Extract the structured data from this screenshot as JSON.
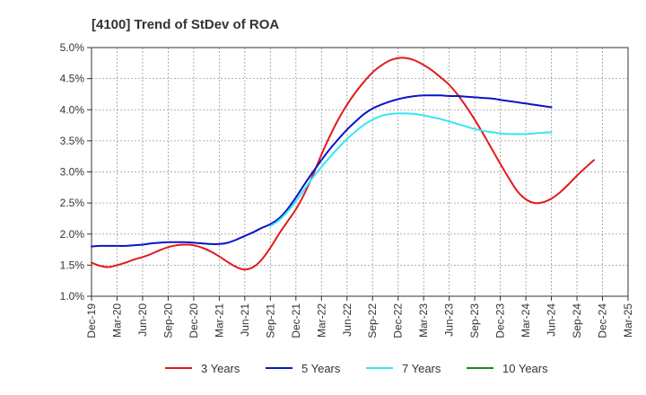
{
  "chart_data": {
    "type": "line",
    "title": "[4100]  Trend of StDev of ROA",
    "xlabel": "",
    "ylabel": "",
    "x_ticks": [
      "Dec-19",
      "Mar-20",
      "Jun-20",
      "Sep-20",
      "Dec-20",
      "Mar-21",
      "Jun-21",
      "Sep-21",
      "Dec-21",
      "Mar-22",
      "Jun-22",
      "Sep-22",
      "Dec-22",
      "Mar-23",
      "Jun-23",
      "Sep-23",
      "Dec-23",
      "Mar-24",
      "Jun-24",
      "Sep-24",
      "Dec-24",
      "Mar-25"
    ],
    "y_ticks": [
      "1.0%",
      "1.5%",
      "2.0%",
      "2.5%",
      "3.0%",
      "3.5%",
      "4.0%",
      "4.5%",
      "5.0%"
    ],
    "ylim": [
      1.0,
      5.0
    ],
    "grid": true,
    "legend_position": "bottom",
    "series": [
      {
        "name": "3 Years",
        "color": "#e31a1c",
        "points": [
          {
            "x": "Dec-19",
            "y": 1.54
          },
          {
            "x": "Jan-20",
            "y": 1.49
          },
          {
            "x": "Feb-20",
            "y": 1.47
          },
          {
            "x": "Mar-20",
            "y": 1.5
          },
          {
            "x": "Apr-20",
            "y": 1.54
          },
          {
            "x": "May-20",
            "y": 1.59
          },
          {
            "x": "Jun-20",
            "y": 1.63
          },
          {
            "x": "Jul-20",
            "y": 1.68
          },
          {
            "x": "Aug-20",
            "y": 1.74
          },
          {
            "x": "Sep-20",
            "y": 1.79
          },
          {
            "x": "Oct-20",
            "y": 1.82
          },
          {
            "x": "Nov-20",
            "y": 1.83
          },
          {
            "x": "Dec-20",
            "y": 1.82
          },
          {
            "x": "Jan-21",
            "y": 1.78
          },
          {
            "x": "Feb-21",
            "y": 1.72
          },
          {
            "x": "Mar-21",
            "y": 1.64
          },
          {
            "x": "Apr-21",
            "y": 1.55
          },
          {
            "x": "May-21",
            "y": 1.47
          },
          {
            "x": "Jun-21",
            "y": 1.43
          },
          {
            "x": "Jul-21",
            "y": 1.47
          },
          {
            "x": "Aug-21",
            "y": 1.59
          },
          {
            "x": "Sep-21",
            "y": 1.78
          },
          {
            "x": "Oct-21",
            "y": 2.0
          },
          {
            "x": "Nov-21",
            "y": 2.2
          },
          {
            "x": "Dec-21",
            "y": 2.4
          },
          {
            "x": "Jan-22",
            "y": 2.65
          },
          {
            "x": "Feb-22",
            "y": 2.95
          },
          {
            "x": "Mar-22",
            "y": 3.28
          },
          {
            "x": "Apr-22",
            "y": 3.58
          },
          {
            "x": "May-22",
            "y": 3.85
          },
          {
            "x": "Jun-22",
            "y": 4.08
          },
          {
            "x": "Jul-22",
            "y": 4.28
          },
          {
            "x": "Aug-22",
            "y": 4.45
          },
          {
            "x": "Sep-22",
            "y": 4.6
          },
          {
            "x": "Oct-22",
            "y": 4.71
          },
          {
            "x": "Nov-22",
            "y": 4.79
          },
          {
            "x": "Dec-22",
            "y": 4.83
          },
          {
            "x": "Jan-23",
            "y": 4.83
          },
          {
            "x": "Feb-23",
            "y": 4.79
          },
          {
            "x": "Mar-23",
            "y": 4.72
          },
          {
            "x": "Apr-23",
            "y": 4.63
          },
          {
            "x": "May-23",
            "y": 4.52
          },
          {
            "x": "Jun-23",
            "y": 4.4
          },
          {
            "x": "Jul-23",
            "y": 4.24
          },
          {
            "x": "Aug-23",
            "y": 4.05
          },
          {
            "x": "Sep-23",
            "y": 3.84
          },
          {
            "x": "Oct-23",
            "y": 3.61
          },
          {
            "x": "Nov-23",
            "y": 3.37
          },
          {
            "x": "Dec-23",
            "y": 3.13
          },
          {
            "x": "Jan-24",
            "y": 2.9
          },
          {
            "x": "Feb-24",
            "y": 2.69
          },
          {
            "x": "Mar-24",
            "y": 2.56
          },
          {
            "x": "Apr-24",
            "y": 2.5
          },
          {
            "x": "May-24",
            "y": 2.51
          },
          {
            "x": "Jun-24",
            "y": 2.57
          },
          {
            "x": "Jul-24",
            "y": 2.67
          },
          {
            "x": "Aug-24",
            "y": 2.8
          },
          {
            "x": "Sep-24",
            "y": 2.94
          },
          {
            "x": "Oct-24",
            "y": 3.07
          },
          {
            "x": "Nov-24",
            "y": 3.19
          }
        ]
      },
      {
        "name": "5 Years",
        "color": "#0a14c8",
        "points": [
          {
            "x": "Dec-19",
            "y": 1.8
          },
          {
            "x": "Jan-20",
            "y": 1.81
          },
          {
            "x": "Feb-20",
            "y": 1.81
          },
          {
            "x": "Mar-20",
            "y": 1.81
          },
          {
            "x": "Apr-20",
            "y": 1.81
          },
          {
            "x": "May-20",
            "y": 1.82
          },
          {
            "x": "Jun-20",
            "y": 1.83
          },
          {
            "x": "Jul-20",
            "y": 1.85
          },
          {
            "x": "Aug-20",
            "y": 1.86
          },
          {
            "x": "Sep-20",
            "y": 1.87
          },
          {
            "x": "Oct-20",
            "y": 1.87
          },
          {
            "x": "Nov-20",
            "y": 1.87
          },
          {
            "x": "Dec-20",
            "y": 1.86
          },
          {
            "x": "Jan-21",
            "y": 1.85
          },
          {
            "x": "Feb-21",
            "y": 1.84
          },
          {
            "x": "Mar-21",
            "y": 1.84
          },
          {
            "x": "Apr-21",
            "y": 1.86
          },
          {
            "x": "May-21",
            "y": 1.91
          },
          {
            "x": "Jun-21",
            "y": 1.97
          },
          {
            "x": "Jul-21",
            "y": 2.03
          },
          {
            "x": "Aug-21",
            "y": 2.1
          },
          {
            "x": "Sep-21",
            "y": 2.16
          },
          {
            "x": "Oct-21",
            "y": 2.25
          },
          {
            "x": "Nov-21",
            "y": 2.4
          },
          {
            "x": "Dec-21",
            "y": 2.59
          },
          {
            "x": "Jan-22",
            "y": 2.8
          },
          {
            "x": "Feb-22",
            "y": 3.0
          },
          {
            "x": "Mar-22",
            "y": 3.19
          },
          {
            "x": "Apr-22",
            "y": 3.37
          },
          {
            "x": "May-22",
            "y": 3.53
          },
          {
            "x": "Jun-22",
            "y": 3.68
          },
          {
            "x": "Jul-22",
            "y": 3.81
          },
          {
            "x": "Aug-22",
            "y": 3.93
          },
          {
            "x": "Sep-22",
            "y": 4.02
          },
          {
            "x": "Oct-22",
            "y": 4.08
          },
          {
            "x": "Nov-22",
            "y": 4.13
          },
          {
            "x": "Dec-22",
            "y": 4.17
          },
          {
            "x": "Jan-23",
            "y": 4.2
          },
          {
            "x": "Feb-23",
            "y": 4.22
          },
          {
            "x": "Mar-23",
            "y": 4.23
          },
          {
            "x": "Apr-23",
            "y": 4.23
          },
          {
            "x": "May-23",
            "y": 4.23
          },
          {
            "x": "Jun-23",
            "y": 4.22
          },
          {
            "x": "Jul-23",
            "y": 4.22
          },
          {
            "x": "Aug-23",
            "y": 4.21
          },
          {
            "x": "Sep-23",
            "y": 4.2
          },
          {
            "x": "Oct-23",
            "y": 4.19
          },
          {
            "x": "Nov-23",
            "y": 4.18
          },
          {
            "x": "Dec-23",
            "y": 4.16
          },
          {
            "x": "Jan-24",
            "y": 4.14
          },
          {
            "x": "Feb-24",
            "y": 4.12
          },
          {
            "x": "Mar-24",
            "y": 4.1
          },
          {
            "x": "Apr-24",
            "y": 4.08
          },
          {
            "x": "May-24",
            "y": 4.06
          },
          {
            "x": "Jun-24",
            "y": 4.04
          }
        ]
      },
      {
        "name": "7 Years",
        "color": "#33e8f2",
        "points": [
          {
            "x": "Sep-21",
            "y": 2.13
          },
          {
            "x": "Oct-21",
            "y": 2.22
          },
          {
            "x": "Nov-21",
            "y": 2.36
          },
          {
            "x": "Dec-21",
            "y": 2.53
          },
          {
            "x": "Jan-22",
            "y": 2.72
          },
          {
            "x": "Feb-22",
            "y": 2.91
          },
          {
            "x": "Mar-22",
            "y": 3.08
          },
          {
            "x": "Apr-22",
            "y": 3.24
          },
          {
            "x": "May-22",
            "y": 3.39
          },
          {
            "x": "Jun-22",
            "y": 3.53
          },
          {
            "x": "Jul-22",
            "y": 3.65
          },
          {
            "x": "Aug-22",
            "y": 3.76
          },
          {
            "x": "Sep-22",
            "y": 3.84
          },
          {
            "x": "Oct-22",
            "y": 3.9
          },
          {
            "x": "Nov-22",
            "y": 3.93
          },
          {
            "x": "Dec-22",
            "y": 3.94
          },
          {
            "x": "Jan-23",
            "y": 3.94
          },
          {
            "x": "Feb-23",
            "y": 3.93
          },
          {
            "x": "Mar-23",
            "y": 3.91
          },
          {
            "x": "Apr-23",
            "y": 3.88
          },
          {
            "x": "May-23",
            "y": 3.85
          },
          {
            "x": "Jun-23",
            "y": 3.81
          },
          {
            "x": "Jul-23",
            "y": 3.77
          },
          {
            "x": "Aug-23",
            "y": 3.73
          },
          {
            "x": "Sep-23",
            "y": 3.69
          },
          {
            "x": "Oct-23",
            "y": 3.66
          },
          {
            "x": "Nov-23",
            "y": 3.64
          },
          {
            "x": "Dec-23",
            "y": 3.62
          },
          {
            "x": "Jan-24",
            "y": 3.61
          },
          {
            "x": "Feb-24",
            "y": 3.61
          },
          {
            "x": "Mar-24",
            "y": 3.61
          },
          {
            "x": "Apr-24",
            "y": 3.62
          },
          {
            "x": "May-24",
            "y": 3.63
          },
          {
            "x": "Jun-24",
            "y": 3.64
          }
        ]
      },
      {
        "name": "10 Years",
        "color": "#1a8a1a",
        "points": []
      }
    ]
  }
}
